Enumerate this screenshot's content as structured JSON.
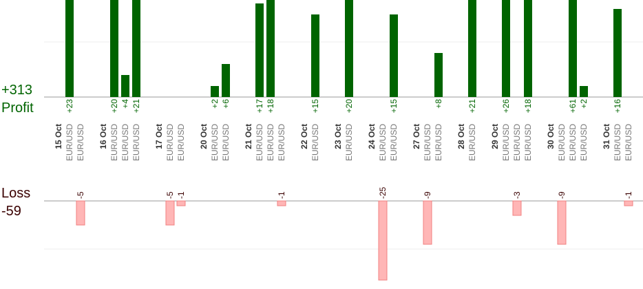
{
  "chart_data": {
    "type": "pnl-bar",
    "profit_title": "Profit",
    "profit_total": "+313",
    "loss_title": "Loss",
    "loss_total": "-59",
    "profit_color": "#006400",
    "loss_color": "#ffb6b6",
    "profit_grid": 10,
    "loss_grid": -10,
    "days": [
      {
        "date": "15 Oct",
        "trades": [
          {
            "pair": "EUR/USD",
            "value": 23,
            "label": "+23"
          },
          {
            "pair": "EUR/USD",
            "value": -5
          }
        ]
      },
      {
        "date": "16 Oct",
        "trades": [
          {
            "pair": "EUR/USD",
            "value": 20,
            "label": "+20"
          },
          {
            "pair": "EUR/USD",
            "value": 4,
            "label": "+4"
          },
          {
            "pair": "EUR/USD",
            "value": 21,
            "label": "+21"
          }
        ]
      },
      {
        "date": "17 Oct",
        "trades": [
          {
            "pair": "EUR/USD",
            "value": -5
          },
          {
            "pair": "EUR/USD",
            "value": -1
          }
        ]
      },
      {
        "date": "20 Oct",
        "trades": [
          {
            "pair": "EUR/USD",
            "value": 2,
            "label": "+2"
          },
          {
            "pair": "EUR/USD",
            "value": 6,
            "label": "+6"
          }
        ]
      },
      {
        "date": "21 Oct",
        "trades": [
          {
            "pair": "EUR/USD",
            "value": 17,
            "label": "+17"
          },
          {
            "pair": "EUR/USD",
            "value": 18,
            "label": "+18"
          },
          {
            "pair": "EUR/USD",
            "value": -1
          }
        ]
      },
      {
        "date": "22 Oct",
        "trades": [
          {
            "pair": "EUR/USD",
            "value": 15,
            "label": "+15"
          }
        ]
      },
      {
        "date": "23 Oct",
        "trades": [
          {
            "pair": "EUR/USD",
            "value": 20,
            "label": "+20"
          }
        ]
      },
      {
        "date": "24 Oct",
        "trades": [
          {
            "pair": "EUR/USD",
            "value": -25
          },
          {
            "pair": "EUR/USD",
            "value": 15,
            "label": "+15"
          }
        ]
      },
      {
        "date": "27 Oct",
        "trades": [
          {
            "pair": "EUR/USD",
            "value": -9
          },
          {
            "pair": "EUR/USD",
            "value": 8,
            "label": "+8"
          }
        ]
      },
      {
        "date": "28 Oct",
        "trades": [
          {
            "pair": "EUR/USD",
            "value": 21,
            "label": "+21"
          }
        ]
      },
      {
        "date": "29 Oct",
        "trades": [
          {
            "pair": "EUR/USD",
            "value": 26,
            "label": "+26"
          },
          {
            "pair": "EUR/USD",
            "value": -3
          },
          {
            "pair": "EUR/USD",
            "value": 18,
            "label": "+18"
          }
        ]
      },
      {
        "date": "30 Oct",
        "trades": [
          {
            "pair": "EUR/USD",
            "value": -9
          },
          {
            "pair": "EUR/USD",
            "value": 61,
            "label": "+61"
          },
          {
            "pair": "EUR/USD",
            "value": 2,
            "label": "+2"
          }
        ]
      },
      {
        "date": "31 Oct",
        "trades": [
          {
            "pair": "EUR/USD",
            "value": 16,
            "label": "+16"
          },
          {
            "pair": "EUR/USD",
            "value": -1
          }
        ]
      }
    ]
  }
}
